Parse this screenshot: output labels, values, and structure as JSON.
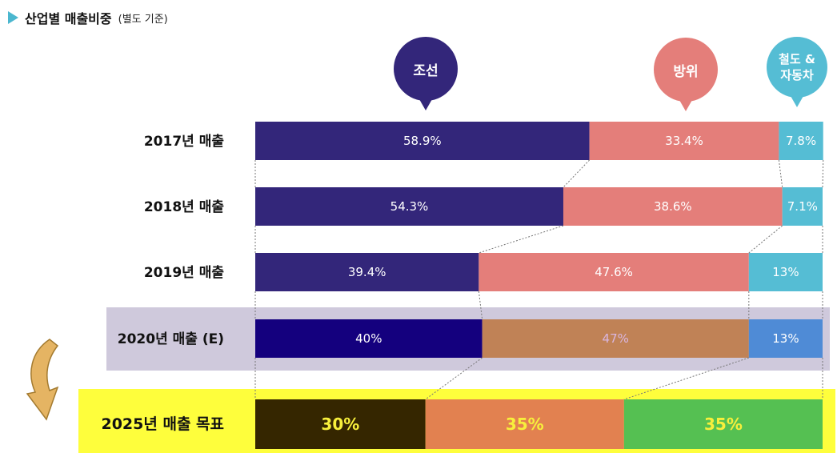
{
  "header": {
    "title": "산업별 매출비중",
    "subtitle": "(별도 기준)"
  },
  "bubbles": [
    {
      "label": "조선",
      "color": "#33267a"
    },
    {
      "label": "방위",
      "color": "#e47e7a"
    },
    {
      "label": "철도 &\n자동차",
      "color": "#55bdd4"
    }
  ],
  "chart_data": {
    "type": "bar",
    "orientation": "horizontal",
    "stacked": true,
    "normalized": true,
    "categories": [
      "2017년 매출",
      "2018년 매출",
      "2019년 매출",
      "2020년 매출 (E)",
      "2025년 매출 목표"
    ],
    "series": [
      {
        "name": "조선",
        "values": [
          58.9,
          54.3,
          39.4,
          40,
          30
        ],
        "labels": [
          "58.9%",
          "54.3%",
          "39.4%",
          "40%",
          "30%"
        ]
      },
      {
        "name": "방위",
        "values": [
          33.4,
          38.6,
          47.6,
          47,
          35
        ],
        "labels": [
          "33.4%",
          "38.6%",
          "47.6%",
          "47%",
          "35%"
        ]
      },
      {
        "name": "철도 & 자동차",
        "values": [
          7.8,
          7.1,
          13,
          13,
          35
        ],
        "labels": [
          "7.8%",
          "7.1%",
          "13%",
          "13%",
          "35%"
        ]
      }
    ],
    "row_colors": [
      [
        "#33267a",
        "#e47e7a",
        "#55bdd4"
      ],
      [
        "#33267a",
        "#e47e7a",
        "#55bdd4"
      ],
      [
        "#33267a",
        "#e47e7a",
        "#55bdd4"
      ],
      [
        "#14007e",
        "#c08256",
        "#4f8bd6"
      ],
      [
        "#352600",
        "#e28150",
        "#55c052"
      ]
    ],
    "label_colors": [
      [
        "#ffffff",
        "#ffffff",
        "#ffffff"
      ],
      [
        "#ffffff",
        "#ffffff",
        "#ffffff"
      ],
      [
        "#ffffff",
        "#ffffff",
        "#ffffff"
      ],
      [
        "#ffffff",
        "#d9b6e0",
        "#ffffff"
      ],
      [
        "#f7ef3c",
        "#f7ef3c",
        "#f7ef3c"
      ]
    ],
    "highlight": {
      "2020년 매출 (E)": "#cfc9dc",
      "2025년 매출 목표": "#fefe3c"
    },
    "xlim": [
      0,
      100
    ],
    "legend": "callout bubbles above bars",
    "grid": false
  }
}
